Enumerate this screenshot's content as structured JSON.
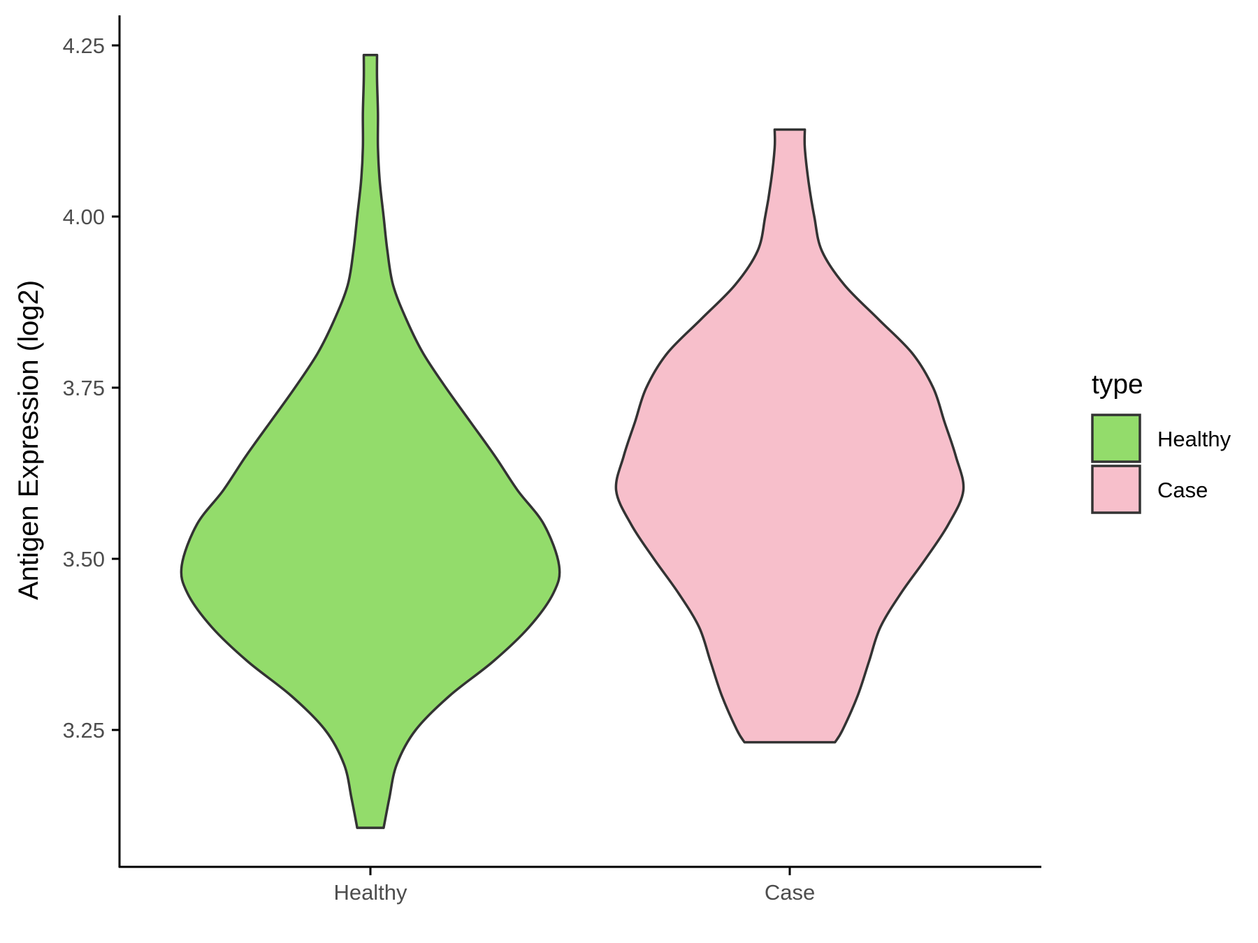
{
  "chart_data": {
    "type": "violin",
    "ylabel": "Antigen Expression (log2)",
    "xlabel": "",
    "categories": [
      "Healthy",
      "Case"
    ],
    "y_ticks": [
      "3.25",
      "3.50",
      "3.75",
      "4.00",
      "4.25"
    ],
    "ylim": [
      3.06,
      4.29
    ],
    "grid": false,
    "legend": {
      "title": "type",
      "position": "right",
      "entries": [
        "Healthy",
        "Case"
      ]
    },
    "series": [
      {
        "name": "Healthy",
        "color": "#93dc6b",
        "min": 3.107,
        "max": 4.236,
        "density_profile": [
          [
            3.107,
            0.07
          ],
          [
            3.15,
            0.1
          ],
          [
            3.2,
            0.14
          ],
          [
            3.25,
            0.24
          ],
          [
            3.3,
            0.42
          ],
          [
            3.35,
            0.65
          ],
          [
            3.4,
            0.84
          ],
          [
            3.45,
            0.97
          ],
          [
            3.49,
            1.0
          ],
          [
            3.55,
            0.92
          ],
          [
            3.6,
            0.78
          ],
          [
            3.65,
            0.66
          ],
          [
            3.7,
            0.53
          ],
          [
            3.75,
            0.4
          ],
          [
            3.8,
            0.28
          ],
          [
            3.85,
            0.19
          ],
          [
            3.9,
            0.12
          ],
          [
            3.95,
            0.09
          ],
          [
            4.0,
            0.07
          ],
          [
            4.05,
            0.05
          ],
          [
            4.1,
            0.04
          ],
          [
            4.15,
            0.04
          ],
          [
            4.2,
            0.035
          ],
          [
            4.236,
            0.035
          ]
        ]
      },
      {
        "name": "Case",
        "color": "#f7bfcb",
        "min": 3.232,
        "max": 4.127,
        "density_profile": [
          [
            3.232,
            0.24
          ],
          [
            3.25,
            0.28
          ],
          [
            3.3,
            0.36
          ],
          [
            3.35,
            0.42
          ],
          [
            3.4,
            0.48
          ],
          [
            3.45,
            0.59
          ],
          [
            3.5,
            0.72
          ],
          [
            3.55,
            0.84
          ],
          [
            3.6,
            0.92
          ],
          [
            3.65,
            0.88
          ],
          [
            3.7,
            0.82
          ],
          [
            3.75,
            0.76
          ],
          [
            3.8,
            0.65
          ],
          [
            3.85,
            0.47
          ],
          [
            3.9,
            0.29
          ],
          [
            3.95,
            0.17
          ],
          [
            4.0,
            0.13
          ],
          [
            4.05,
            0.1
          ],
          [
            4.1,
            0.08
          ],
          [
            4.127,
            0.08
          ]
        ]
      }
    ]
  }
}
